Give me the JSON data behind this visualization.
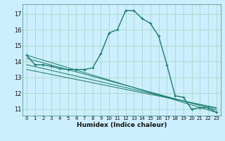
{
  "title": "",
  "xlabel": "Humidex (Indice chaleur)",
  "bg_color": "#cceeff",
  "grid_color": "#aaddcc",
  "line_color": "#1a7a6a",
  "xlim": [
    -0.5,
    23.5
  ],
  "ylim": [
    10.6,
    17.6
  ],
  "yticks": [
    11,
    12,
    13,
    14,
    15,
    16,
    17
  ],
  "xticks": [
    0,
    1,
    2,
    3,
    4,
    5,
    6,
    7,
    8,
    9,
    10,
    11,
    12,
    13,
    14,
    15,
    16,
    17,
    18,
    19,
    20,
    21,
    22,
    23
  ],
  "series": [
    [
      0,
      14.4
    ],
    [
      1,
      13.8
    ],
    [
      2,
      13.8
    ],
    [
      3,
      13.7
    ],
    [
      4,
      13.55
    ],
    [
      5,
      13.5
    ],
    [
      6,
      13.5
    ],
    [
      7,
      13.5
    ],
    [
      8,
      13.6
    ],
    [
      9,
      14.5
    ],
    [
      10,
      15.8
    ],
    [
      11,
      16.0
    ],
    [
      12,
      17.2
    ],
    [
      13,
      17.2
    ],
    [
      14,
      16.7
    ],
    [
      15,
      16.4
    ],
    [
      16,
      15.6
    ],
    [
      17,
      13.8
    ],
    [
      18,
      11.85
    ],
    [
      19,
      11.75
    ],
    [
      20,
      11.0
    ],
    [
      21,
      11.1
    ],
    [
      22,
      11.1
    ],
    [
      23,
      10.8
    ]
  ],
  "extra_lines": [
    {
      "x": [
        0,
        23
      ],
      "y": [
        14.4,
        10.8
      ]
    },
    {
      "x": [
        0,
        23
      ],
      "y": [
        14.2,
        10.95
      ]
    },
    {
      "x": [
        0,
        23
      ],
      "y": [
        13.8,
        11.05
      ]
    },
    {
      "x": [
        0,
        23
      ],
      "y": [
        13.5,
        11.1
      ]
    }
  ]
}
